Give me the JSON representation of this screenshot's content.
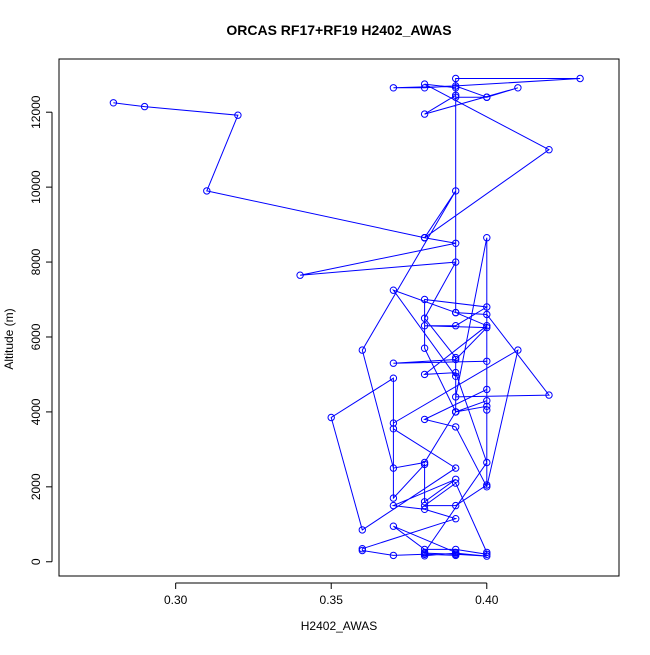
{
  "chart_data": {
    "type": "line",
    "title": "ORCAS RF17+RF19 H2402_AWAS",
    "xlabel": "H2402_AWAS",
    "ylabel": "Altitude (m)",
    "xlim": [
      0.2625,
      0.4425
    ],
    "ylim": [
      -380,
      13420
    ],
    "xticks": [
      0.3,
      0.35,
      0.4
    ],
    "xtick_labels": [
      "0.30",
      "0.35",
      "0.40"
    ],
    "yticks": [
      0,
      2000,
      4000,
      6000,
      8000,
      10000,
      12000
    ],
    "ytick_labels": [
      "0",
      "2000",
      "4000",
      "6000",
      "8000",
      "10000",
      "12000"
    ],
    "grid": false,
    "series": [
      {
        "color": "#0000ff",
        "marker": "open-circle",
        "x": [
          0.28,
          0.29,
          0.32,
          0.31,
          0.38,
          0.39,
          0.34,
          0.39,
          0.38,
          0.39,
          0.39,
          0.39,
          0.37,
          0.39,
          0.39,
          0.43,
          0.38,
          0.37,
          0.39,
          0.4,
          0.39,
          0.4,
          0.41,
          0.38,
          0.39,
          0.39,
          0.38,
          0.42,
          0.38,
          0.38,
          0.39,
          0.36,
          0.37,
          0.38,
          0.39,
          0.38,
          0.38,
          0.4,
          0.39,
          0.38,
          0.4,
          0.39,
          0.37,
          0.4,
          0.4,
          0.4,
          0.39,
          0.4,
          0.4,
          0.38,
          0.39,
          0.4,
          0.41,
          0.37,
          0.37,
          0.39,
          0.36,
          0.35,
          0.37,
          0.37,
          0.38,
          0.38,
          0.39,
          0.37,
          0.38,
          0.39,
          0.36,
          0.36,
          0.37,
          0.38,
          0.39,
          0.39,
          0.37,
          0.38,
          0.39,
          0.4,
          0.4,
          0.39,
          0.38,
          0.39,
          0.4,
          0.4,
          0.39,
          0.42,
          0.4,
          0.39,
          0.4,
          0.38,
          0.39,
          0.4,
          0.38,
          0.38,
          0.39,
          0.4,
          0.39,
          0.38
        ],
        "y": [
          12250,
          12150,
          11920,
          9900,
          8650,
          8500,
          7650,
          8000,
          6500,
          5450,
          4000,
          4950,
          7250,
          6650,
          12900,
          12900,
          12650,
          12650,
          12700,
          12400,
          12400,
          12400,
          12650,
          11950,
          12450,
          12650,
          12750,
          11000,
          8650,
          8650,
          9900,
          5650,
          2500,
          2650,
          4000,
          5700,
          7000,
          6800,
          6300,
          6300,
          6250,
          5400,
          5300,
          5350,
          4050,
          4150,
          4000,
          4300,
          4600,
          3800,
          3600,
          2000,
          5650,
          3700,
          3550,
          2500,
          850,
          3850,
          4900,
          1700,
          2600,
          1600,
          2200,
          1500,
          1400,
          1150,
          350,
          300,
          170,
          200,
          170,
          250,
          950,
          330,
          330,
          200,
          250,
          2100,
          1500,
          1500,
          2050,
          8650,
          4400,
          4450,
          6600,
          6650,
          6300,
          5000,
          5050,
          2650,
          250,
          230,
          200,
          150,
          230,
          160
        ]
      }
    ]
  }
}
